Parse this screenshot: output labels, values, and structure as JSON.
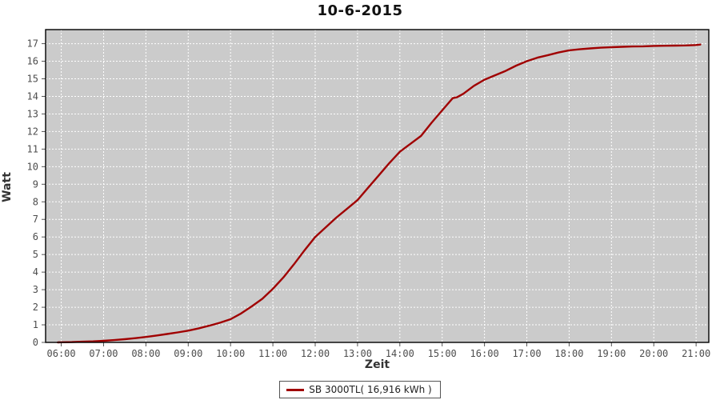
{
  "colors": {
    "plot_bg": "#cbcbcb",
    "grid": "#ffffff",
    "frame": "#000000",
    "tick": "#555555",
    "tick_label": "#4d4d4d",
    "series": "#a00000"
  },
  "chart_data": {
    "type": "line",
    "title": "10-6-2015",
    "xlabel": "Zeit",
    "ylabel": "Watt",
    "legend_position": "bottom-center",
    "grid": "white dashed gridlines on gray plot background",
    "xlim_hours": [
      5.63,
      21.3
    ],
    "ylim": [
      0,
      17.8
    ],
    "y_ticks": [
      0,
      1,
      2,
      3,
      4,
      5,
      6,
      7,
      8,
      9,
      10,
      11,
      12,
      13,
      14,
      15,
      16,
      17
    ],
    "x_ticks": [
      {
        "hour": 6,
        "label": "06:00"
      },
      {
        "hour": 7,
        "label": "07:00"
      },
      {
        "hour": 8,
        "label": "08:00"
      },
      {
        "hour": 9,
        "label": "09:00"
      },
      {
        "hour": 10,
        "label": "10:00"
      },
      {
        "hour": 11,
        "label": "11:00"
      },
      {
        "hour": 12,
        "label": "12:00"
      },
      {
        "hour": 13,
        "label": "13:00"
      },
      {
        "hour": 14,
        "label": "14:00"
      },
      {
        "hour": 15,
        "label": "15:00"
      },
      {
        "hour": 16,
        "label": "16:00"
      },
      {
        "hour": 17,
        "label": "17:00"
      },
      {
        "hour": 18,
        "label": "18:00"
      },
      {
        "hour": 19,
        "label": "19:00"
      },
      {
        "hour": 20,
        "label": "20:00"
      },
      {
        "hour": 21,
        "label": "21:00"
      }
    ],
    "series": [
      {
        "name": "SB 3000TL( 16,916 kWh )",
        "color": "#a00000",
        "final_value_kwh": 16.916,
        "points": [
          [
            5.92,
            0.0
          ],
          [
            6.0,
            0.01
          ],
          [
            6.25,
            0.02
          ],
          [
            6.5,
            0.04
          ],
          [
            6.75,
            0.06
          ],
          [
            7.0,
            0.09
          ],
          [
            7.25,
            0.13
          ],
          [
            7.5,
            0.18
          ],
          [
            7.75,
            0.24
          ],
          [
            8.0,
            0.31
          ],
          [
            8.25,
            0.39
          ],
          [
            8.5,
            0.48
          ],
          [
            8.75,
            0.57
          ],
          [
            9.0,
            0.67
          ],
          [
            9.25,
            0.8
          ],
          [
            9.5,
            0.95
          ],
          [
            9.75,
            1.12
          ],
          [
            10.0,
            1.32
          ],
          [
            10.25,
            1.65
          ],
          [
            10.5,
            2.05
          ],
          [
            10.75,
            2.48
          ],
          [
            11.0,
            3.05
          ],
          [
            11.25,
            3.7
          ],
          [
            11.5,
            4.45
          ],
          [
            11.75,
            5.25
          ],
          [
            12.0,
            6.0
          ],
          [
            12.25,
            6.55
          ],
          [
            12.5,
            7.1
          ],
          [
            12.75,
            7.6
          ],
          [
            13.0,
            8.1
          ],
          [
            13.25,
            8.8
          ],
          [
            13.5,
            9.5
          ],
          [
            13.75,
            10.2
          ],
          [
            14.0,
            10.85
          ],
          [
            14.25,
            11.3
          ],
          [
            14.5,
            11.75
          ],
          [
            14.75,
            12.5
          ],
          [
            15.0,
            13.2
          ],
          [
            15.25,
            13.9
          ],
          [
            15.35,
            13.95
          ],
          [
            15.5,
            14.15
          ],
          [
            15.75,
            14.6
          ],
          [
            16.0,
            14.95
          ],
          [
            16.25,
            15.2
          ],
          [
            16.5,
            15.45
          ],
          [
            16.75,
            15.75
          ],
          [
            17.0,
            16.0
          ],
          [
            17.25,
            16.2
          ],
          [
            17.5,
            16.35
          ],
          [
            17.75,
            16.5
          ],
          [
            18.0,
            16.62
          ],
          [
            18.25,
            16.68
          ],
          [
            18.5,
            16.73
          ],
          [
            18.75,
            16.77
          ],
          [
            19.0,
            16.8
          ],
          [
            19.25,
            16.82
          ],
          [
            19.5,
            16.84
          ],
          [
            19.75,
            16.85
          ],
          [
            20.0,
            16.87
          ],
          [
            20.25,
            16.88
          ],
          [
            20.5,
            16.89
          ],
          [
            20.75,
            16.9
          ],
          [
            21.0,
            16.92
          ],
          [
            21.1,
            16.95
          ]
        ]
      }
    ]
  }
}
